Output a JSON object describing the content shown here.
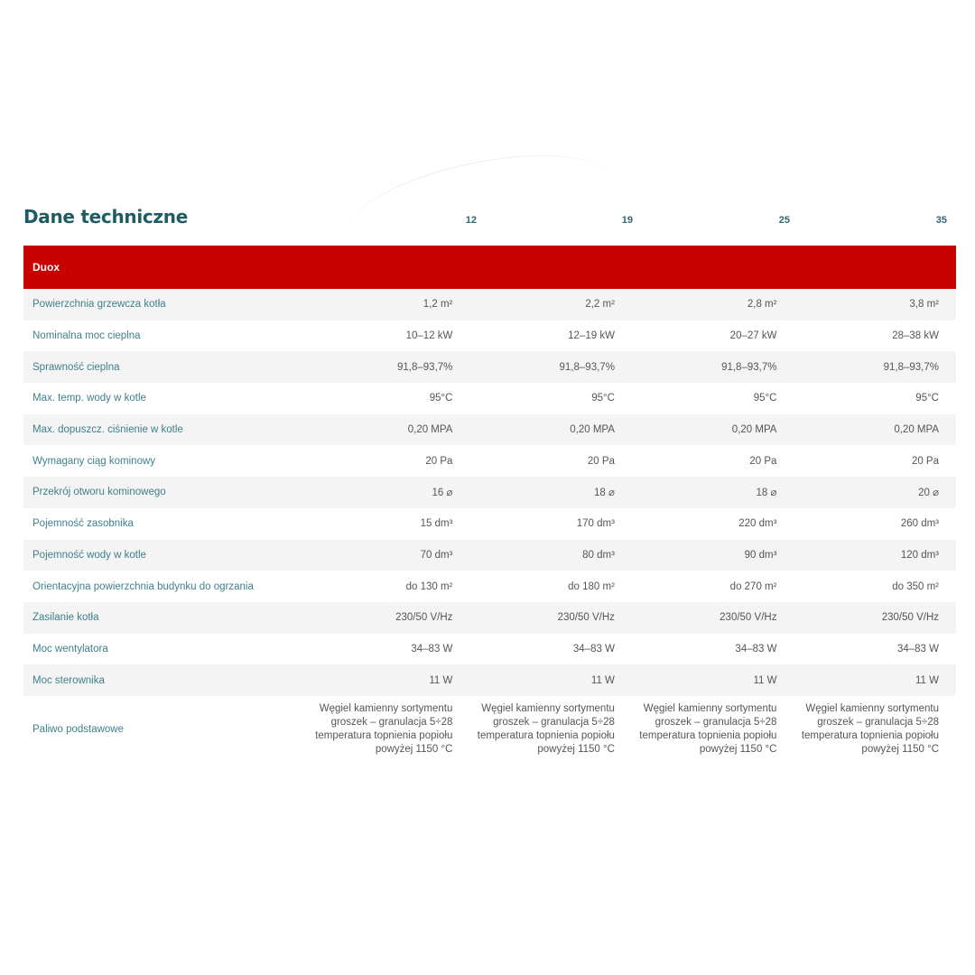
{
  "title": "Dane techniczne",
  "columns": [
    "12",
    "19",
    "25",
    "35"
  ],
  "group": "Duox",
  "rows": [
    {
      "label": "Powierzchnia grzewcza kotła",
      "values": [
        "1,2 m²",
        "2,2 m²",
        "2,8 m²",
        "3,8 m²"
      ]
    },
    {
      "label": "Nominalna moc cieplna",
      "values": [
        "10–12 kW",
        "12–19 kW",
        "20–27 kW",
        "28–38 kW"
      ]
    },
    {
      "label": "Sprawność cieplna",
      "values": [
        "91,8–93,7%",
        "91,8–93,7%",
        "91,8–93,7%",
        "91,8–93,7%"
      ]
    },
    {
      "label": "Max. temp. wody w kotle",
      "values": [
        "95°C",
        "95°C",
        "95°C",
        "95°C"
      ]
    },
    {
      "label": "Max. dopuszcz. ciśnienie w kotle",
      "values": [
        "0,20 MPA",
        "0,20 MPA",
        "0,20 MPA",
        "0,20 MPA"
      ]
    },
    {
      "label": "Wymagany ciąg kominowy",
      "values": [
        "20 Pa",
        "20 Pa",
        "20 Pa",
        "20 Pa"
      ]
    },
    {
      "label": "Przekrój otworu kominowego",
      "values": [
        "16 ⌀",
        "18 ⌀",
        "18 ⌀",
        "20 ⌀"
      ]
    },
    {
      "label": "Pojemność zasobnika",
      "values": [
        "15 dm³",
        "170 dm³",
        "220 dm³",
        "260 dm³"
      ]
    },
    {
      "label": "Pojemność wody w kotle",
      "values": [
        "70 dm³",
        "80 dm³",
        "90 dm³",
        "120 dm³"
      ]
    },
    {
      "label": "Orientacyjna powierzchnia budynku do ogrzania",
      "values": [
        "do 130 m²",
        "do 180 m²",
        "do 270 m²",
        "do 350 m²"
      ]
    },
    {
      "label": "Zasilanie kotła",
      "values": [
        "230/50 V/Hz",
        "230/50 V/Hz",
        "230/50 V/Hz",
        "230/50 V/Hz"
      ]
    },
    {
      "label": "Moc wentylatora",
      "values": [
        "34–83 W",
        "34–83 W",
        "34–83 W",
        "34–83 W"
      ]
    },
    {
      "label": "Moc sterownika",
      "values": [
        "11 W",
        "11 W",
        "11 W",
        "11 W"
      ]
    },
    {
      "label": "Paliwo podstawowe",
      "values": [
        "Węgiel kamienny sortymentu groszek – granulacja 5÷28 temperatura topnienia popiołu powyżej 1150 °C",
        "Węgiel kamienny sortymentu groszek – granulacja 5÷28 temperatura topnienia popiołu powyżej 1150 °C",
        "Węgiel kamienny sortymentu groszek – granulacja 5÷28 temperatura topnienia popiołu powyżej 1150 °C",
        "Węgiel kamienny sortymentu groszek – granulacja 5÷28 temperatura topnienia popiołu powyżej 1150 °C"
      ]
    }
  ]
}
